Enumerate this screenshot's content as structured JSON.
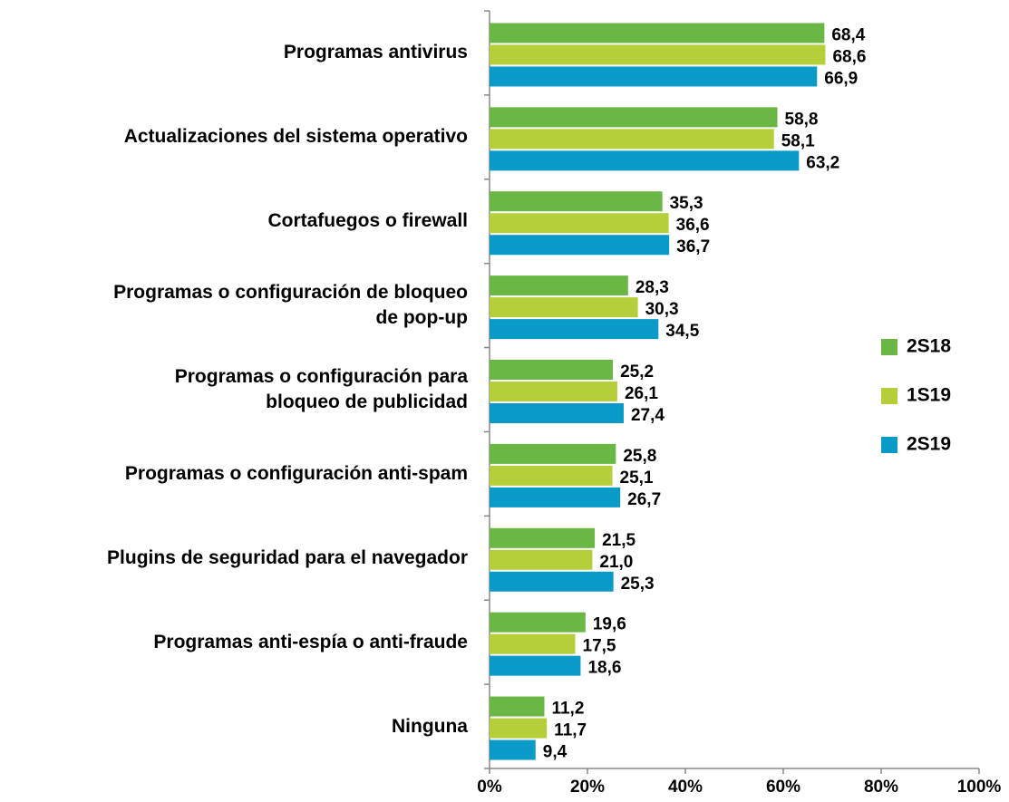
{
  "chart_data": {
    "type": "bar",
    "orientation": "horizontal",
    "categories": [
      "Programas antivirus",
      "Actualizaciones del sistema operativo",
      "Cortafuegos o firewall",
      "Programas o configuración de bloqueo\nde pop-up",
      "Programas o configuración para\nbloqueo de publicidad",
      "Programas o configuración anti-spam",
      "Plugins de seguridad para el navegador",
      "Programas anti-espía o anti-fraude",
      "Ninguna"
    ],
    "series": [
      {
        "name": "2S18",
        "color": "#6ab745",
        "values": [
          68.4,
          58.8,
          35.3,
          28.3,
          25.2,
          25.8,
          21.5,
          19.6,
          11.2
        ],
        "value_labels": [
          "68,4",
          "58,8",
          "35,3",
          "28,3",
          "25,2",
          "25,8",
          "21,5",
          "19,6",
          "11,2"
        ]
      },
      {
        "name": "1S19",
        "color": "#b5cf3a",
        "values": [
          68.6,
          58.1,
          36.6,
          30.3,
          26.1,
          25.1,
          21.0,
          17.5,
          11.7
        ],
        "value_labels": [
          "68,6",
          "58,1",
          "36,6",
          "30,3",
          "26,1",
          "25,1",
          "21,0",
          "17,5",
          "11,7"
        ]
      },
      {
        "name": "2S19",
        "color": "#0a9ac8",
        "values": [
          66.9,
          63.2,
          36.7,
          34.5,
          27.4,
          26.7,
          25.3,
          18.6,
          9.4
        ],
        "value_labels": [
          "66,9",
          "63,2",
          "36,7",
          "34,5",
          "27,4",
          "26,7",
          "25,3",
          "18,6",
          "9,4"
        ]
      }
    ],
    "xlim": [
      0,
      100
    ],
    "xticks": [
      {
        "value": 0,
        "label": "0%"
      },
      {
        "value": 20,
        "label": "20%"
      },
      {
        "value": 40,
        "label": "40%"
      },
      {
        "value": 60,
        "label": "60%"
      },
      {
        "value": 80,
        "label": "80%"
      },
      {
        "value": 100,
        "label": "100%"
      }
    ],
    "legend": "right"
  }
}
